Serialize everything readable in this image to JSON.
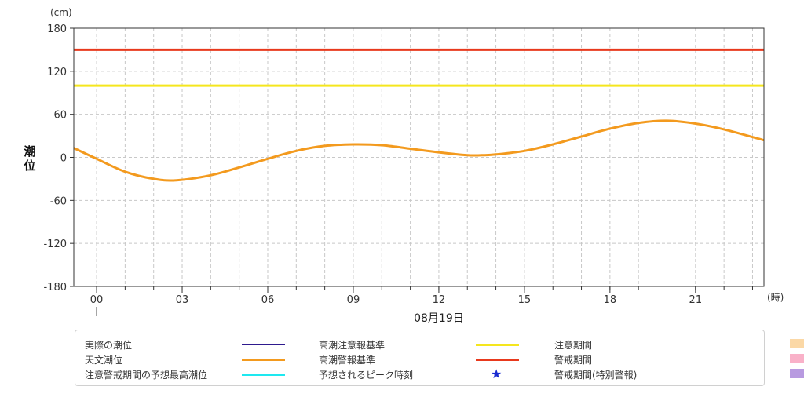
{
  "chart_data": {
    "type": "line",
    "y_unit": "(cm)",
    "x_unit": "(時)",
    "ylabel": "潮位",
    "date_label": "08月19日",
    "ylim": [
      -180,
      180
    ],
    "yticks": [
      180,
      120,
      60,
      0,
      -60,
      -120,
      -180
    ],
    "xlim": [
      -0.8,
      23.4
    ],
    "xticks": [
      {
        "value": 0,
        "label": "00"
      },
      {
        "value": 3,
        "label": "03"
      },
      {
        "value": 6,
        "label": "06"
      },
      {
        "value": 9,
        "label": "09"
      },
      {
        "value": 12,
        "label": "12"
      },
      {
        "value": 15,
        "label": "15"
      },
      {
        "value": 18,
        "label": "18"
      },
      {
        "value": 21,
        "label": "21"
      }
    ],
    "grid": true,
    "thresholds": [
      {
        "name": "高潮警報基準",
        "value": 150,
        "color": "#e8391d"
      },
      {
        "name": "高潮注意報基準",
        "value": 100,
        "color": "#f5e61e"
      }
    ],
    "series": [
      {
        "name": "天文潮位",
        "color": "#f39a1e",
        "x": [
          -0.8,
          0,
          1,
          2,
          2.8,
          4,
          5,
          6,
          7,
          8,
          9,
          10,
          11,
          12,
          13,
          13.5,
          14,
          15,
          16,
          17,
          18,
          19,
          20,
          21,
          22,
          23.4
        ],
        "y": [
          13,
          -2,
          -20,
          -30,
          -32,
          -25,
          -14,
          -2,
          9,
          16,
          18,
          17,
          12,
          7,
          3,
          3,
          4,
          9,
          18,
          29,
          40,
          48,
          51,
          47,
          39,
          24
        ]
      }
    ]
  },
  "legend": [
    {
      "label": "実際の潮位",
      "kind": "line",
      "color": "#2e1a8e",
      "thin": true
    },
    {
      "label": "天文潮位",
      "kind": "line",
      "color": "#f39a1e",
      "thin": false
    },
    {
      "label": "注意警戒期間の予想最高潮位",
      "kind": "line",
      "color": "#1ee8f0",
      "thin": false
    },
    {
      "label": "高潮注意報基準",
      "kind": "line",
      "color": "#f5e61e",
      "thin": false
    },
    {
      "label": "高潮警報基準",
      "kind": "line",
      "color": "#e8391d",
      "thin": false
    },
    {
      "label": "予想されるピーク時刻",
      "kind": "star",
      "color": "#1a2bd0",
      "glyph": "★"
    },
    {
      "label": "注意期間",
      "kind": "box",
      "color": "#fbd8a6"
    },
    {
      "label": "警戒期間",
      "kind": "box",
      "color": "#f9b1c8"
    },
    {
      "label": "警戒期間(特別警報)",
      "kind": "box",
      "color": "#b89ae0"
    }
  ]
}
